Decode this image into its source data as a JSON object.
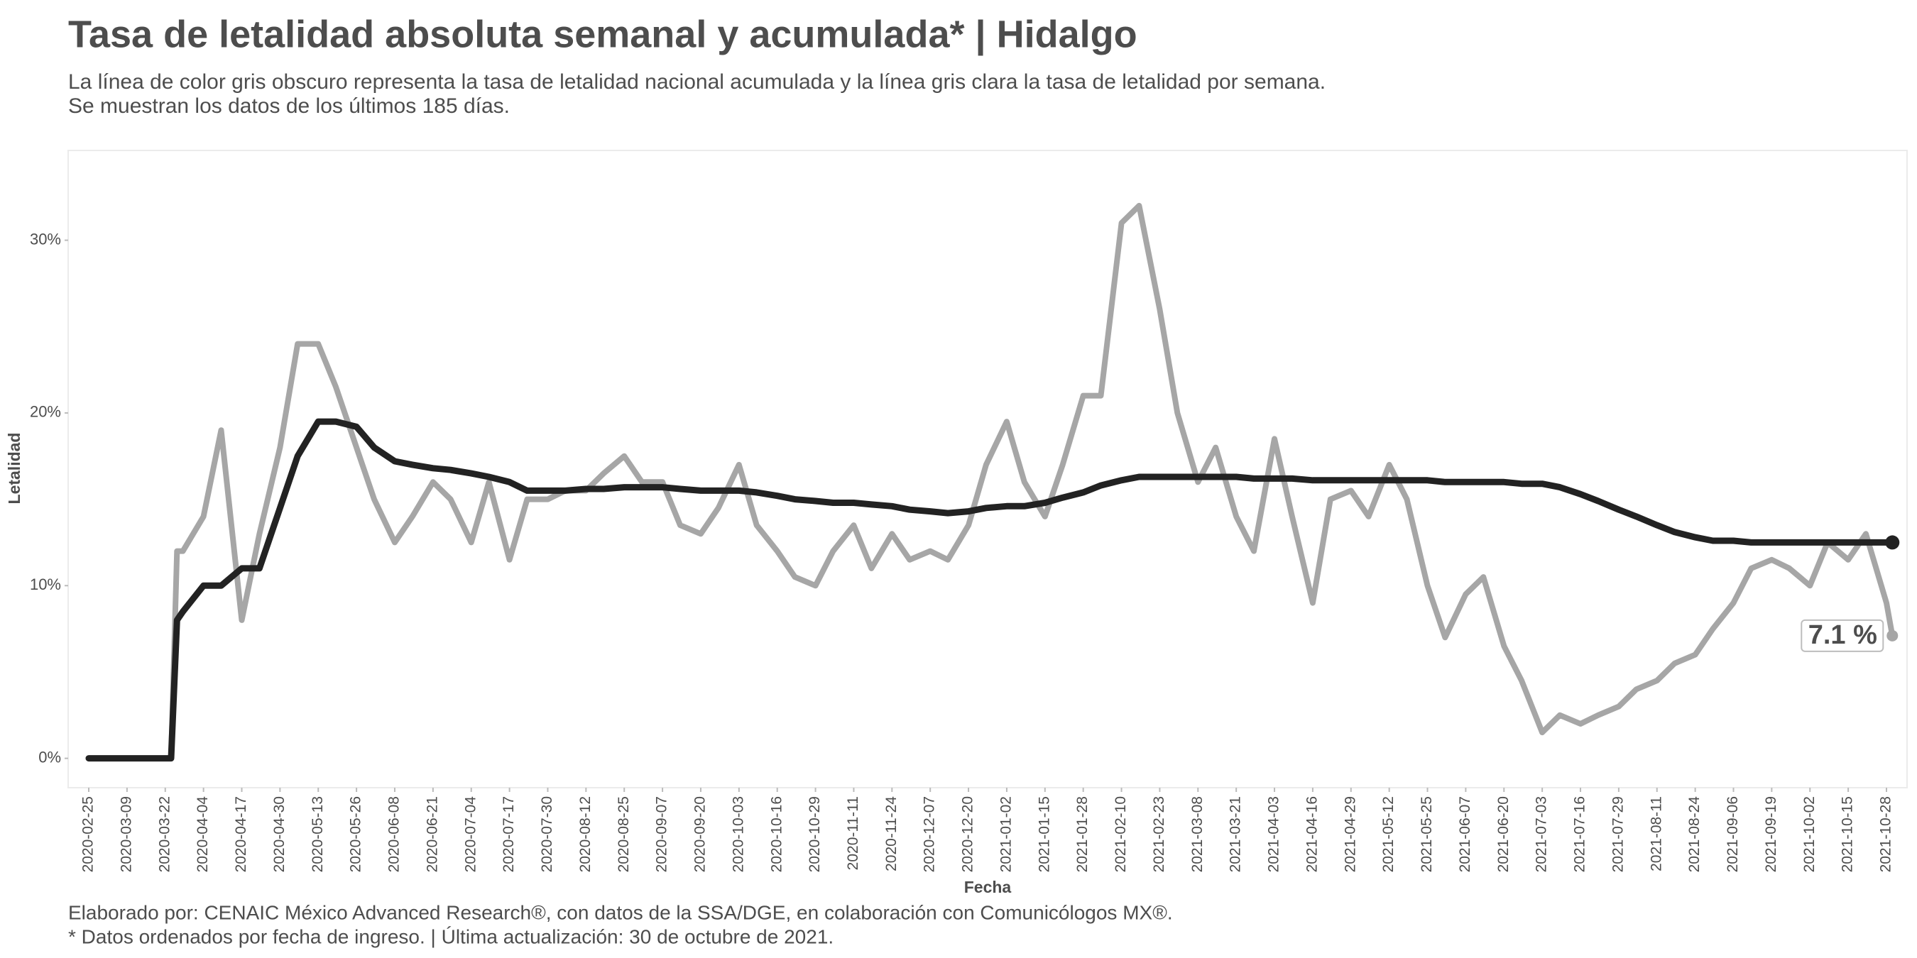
{
  "chart_data": {
    "type": "line",
    "title": "Tasa de letalidad absoluta semanal y acumulada* | Hidalgo",
    "subtitle": [
      "La línea de color gris obscuro representa la tasa de letalidad nacional acumulada y la línea gris clara la tasa de letalidad por semana.",
      "Se muestran los datos de los últimos 185 días."
    ],
    "x_label": "Fecha",
    "y_label": "Letalidad",
    "caption": [
      "Elaborado por: CENAIC México Advanced Research®, con datos de la SSA/DGE, en colaboración con Comunicólogos MX®.",
      "* Datos ordenados por fecha de ingreso. | Última actualización: 30 de octubre de 2021."
    ],
    "x": [
      "2020-02-25",
      "2020-03-02",
      "2020-03-09",
      "2020-03-15",
      "2020-03-22",
      "2020-03-24",
      "2020-03-26",
      "2020-03-28",
      "2020-04-04",
      "2020-04-10",
      "2020-04-17",
      "2020-04-23",
      "2020-04-30",
      "2020-05-06",
      "2020-05-13",
      "2020-05-19",
      "2020-05-26",
      "2020-06-01",
      "2020-06-08",
      "2020-06-14",
      "2020-06-21",
      "2020-06-27",
      "2020-07-04",
      "2020-07-10",
      "2020-07-17",
      "2020-07-23",
      "2020-07-30",
      "2020-08-05",
      "2020-08-12",
      "2020-08-18",
      "2020-08-25",
      "2020-08-31",
      "2020-09-07",
      "2020-09-13",
      "2020-09-20",
      "2020-09-26",
      "2020-10-03",
      "2020-10-09",
      "2020-10-16",
      "2020-10-22",
      "2020-10-29",
      "2020-11-04",
      "2020-11-11",
      "2020-11-17",
      "2020-11-24",
      "2020-11-30",
      "2020-12-07",
      "2020-12-13",
      "2020-12-20",
      "2020-12-26",
      "2021-01-02",
      "2021-01-08",
      "2021-01-15",
      "2021-01-21",
      "2021-01-28",
      "2021-02-03",
      "2021-02-10",
      "2021-02-16",
      "2021-02-23",
      "2021-03-01",
      "2021-03-08",
      "2021-03-14",
      "2021-03-21",
      "2021-03-27",
      "2021-04-03",
      "2021-04-09",
      "2021-04-16",
      "2021-04-22",
      "2021-04-29",
      "2021-05-05",
      "2021-05-12",
      "2021-05-18",
      "2021-05-25",
      "2021-05-31",
      "2021-06-07",
      "2021-06-13",
      "2021-06-20",
      "2021-06-26",
      "2021-07-03",
      "2021-07-09",
      "2021-07-16",
      "2021-07-22",
      "2021-07-29",
      "2021-08-04",
      "2021-08-11",
      "2021-08-17",
      "2021-08-24",
      "2021-08-30",
      "2021-09-06",
      "2021-09-12",
      "2021-09-19",
      "2021-09-25",
      "2021-10-02",
      "2021-10-08",
      "2021-10-15",
      "2021-10-21",
      "2021-10-28",
      "2021-10-30"
    ],
    "series": [
      {
        "color": "#a6a6a6",
        "values": [
          0,
          0,
          0,
          0,
          0,
          0,
          12,
          12,
          14,
          19,
          8,
          13,
          18,
          24,
          24,
          21.5,
          18,
          15,
          12.5,
          14,
          16,
          15,
          12.5,
          16,
          11.5,
          15,
          15,
          15.5,
          15.5,
          16.5,
          17.5,
          16,
          16,
          13.5,
          13,
          14.5,
          17,
          13.5,
          12,
          10.5,
          10,
          12,
          13.5,
          11,
          13,
          11.5,
          12,
          11.5,
          13.5,
          17,
          19.5,
          16,
          14,
          17,
          21,
          21,
          31,
          32,
          26,
          20,
          16,
          18,
          14,
          12,
          18.5,
          14,
          9,
          15,
          15.5,
          14,
          17,
          15,
          10,
          7,
          9.5,
          10.5,
          6.5,
          4.5,
          1.5,
          2.5,
          2,
          2.5,
          3,
          4,
          4.5,
          5.5,
          6,
          7.5,
          9,
          11,
          11.5,
          11,
          10,
          12.5,
          11.5,
          13,
          9,
          7.1
        ]
      },
      {
        "color": "#222222",
        "values": [
          0,
          0,
          0,
          0,
          0,
          0,
          8,
          8.5,
          10,
          10,
          11,
          11,
          14.5,
          17.5,
          19.5,
          19.5,
          19.2,
          18,
          17.2,
          17,
          16.8,
          16.7,
          16.5,
          16.3,
          16,
          15.5,
          15.5,
          15.5,
          15.6,
          15.6,
          15.7,
          15.7,
          15.7,
          15.6,
          15.5,
          15.5,
          15.5,
          15.4,
          15.2,
          15,
          14.9,
          14.8,
          14.8,
          14.7,
          14.6,
          14.4,
          14.3,
          14.2,
          14.3,
          14.5,
          14.6,
          14.6,
          14.8,
          15.1,
          15.4,
          15.8,
          16.1,
          16.3,
          16.3,
          16.3,
          16.3,
          16.3,
          16.3,
          16.2,
          16.2,
          16.2,
          16.1,
          16.1,
          16.1,
          16.1,
          16.1,
          16.1,
          16.1,
          16,
          16,
          16,
          16,
          15.9,
          15.9,
          15.7,
          15.3,
          14.9,
          14.4,
          14,
          13.5,
          13.1,
          12.8,
          12.6,
          12.6,
          12.5,
          12.5,
          12.5,
          12.5,
          12.5,
          12.5,
          12.5,
          12.5,
          12.5
        ]
      }
    ],
    "end_label": {
      "value": 7.1,
      "label": "7.1 %"
    },
    "xlim": [
      "2020-02-18",
      "2021-11-04"
    ],
    "xticks": [
      "2020-02-25",
      "2020-03-09",
      "2020-03-22",
      "2020-04-04",
      "2020-04-17",
      "2020-04-30",
      "2020-05-13",
      "2020-05-26",
      "2020-06-08",
      "2020-06-21",
      "2020-07-04",
      "2020-07-17",
      "2020-07-30",
      "2020-08-12",
      "2020-08-25",
      "2020-09-07",
      "2020-09-20",
      "2020-10-03",
      "2020-10-16",
      "2020-10-29",
      "2020-11-11",
      "2020-11-24",
      "2020-12-07",
      "2020-12-20",
      "2021-01-02",
      "2021-01-15",
      "2021-01-28",
      "2021-02-10",
      "2021-02-23",
      "2021-03-08",
      "2021-03-21",
      "2021-04-03",
      "2021-04-16",
      "2021-04-29",
      "2021-05-12",
      "2021-05-25",
      "2021-06-07",
      "2021-06-20",
      "2021-07-03",
      "2021-07-16",
      "2021-07-29",
      "2021-08-11",
      "2021-08-24",
      "2021-09-06",
      "2021-09-19",
      "2021-10-02",
      "2021-10-15",
      "2021-10-28"
    ],
    "ylim": [
      -1.7,
      35.2
    ],
    "yticks": [
      {
        "value": 0,
        "label": "0%"
      },
      {
        "value": 10,
        "label": "10%"
      },
      {
        "value": 20,
        "label": "20%"
      },
      {
        "value": 30,
        "label": "30%"
      }
    ],
    "grid": false
  }
}
